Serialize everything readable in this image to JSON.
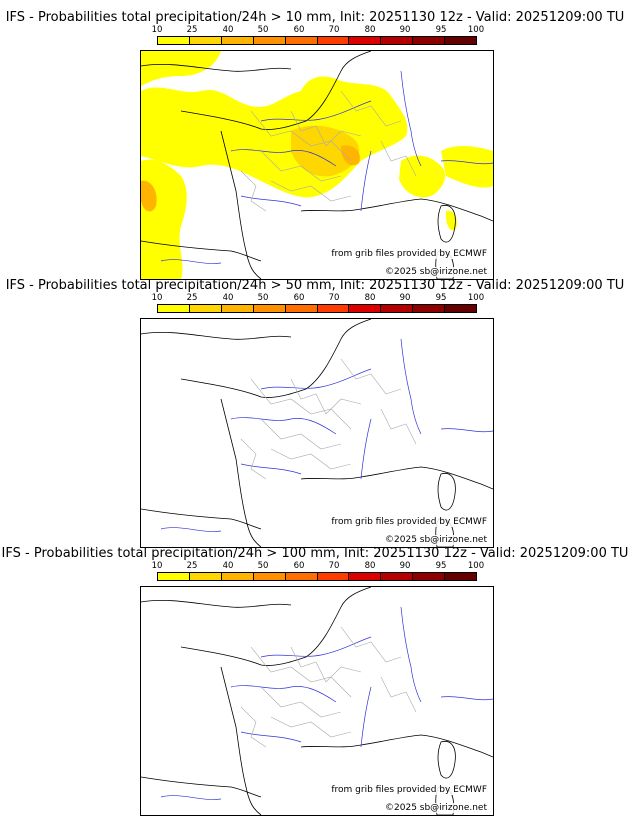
{
  "colors": {
    "scale": [
      "#ffff00",
      "#ffd700",
      "#ffb400",
      "#ff9100",
      "#ff6e00",
      "#ff3c00",
      "#dc0000",
      "#b40000",
      "#8c0000",
      "#640000"
    ],
    "coast": "#000000",
    "rivers": "#3232dc",
    "borders": "#aaaaaa"
  },
  "legend": {
    "ticks": [
      "10",
      "25",
      "40",
      "50",
      "60",
      "70",
      "80",
      "90",
      "95",
      "100"
    ]
  },
  "panels": [
    {
      "title": "IFS - Probabilities total precipitation/24h > 10 mm, Init: 20251130 12z - Valid: 20251209:00 TU",
      "source": "from grib files provided by ECMWF",
      "copyright": "©2025 sb@irizone.net",
      "has_precip": true
    },
    {
      "title": "IFS - Probabilities total precipitation/24h > 50 mm, Init: 20251130 12z - Valid: 20251209:00 TU",
      "source": "from grib files provided by ECMWF",
      "copyright": "©2025 sb@irizone.net",
      "has_precip": false
    },
    {
      "title": "IFS - Probabilities total precipitation/24h > 100 mm, Init: 20251130 12z - Valid: 20251209:00 TU",
      "source": "from grib files provided by ECMWF",
      "copyright": "©2025 sb@irizone.net",
      "has_precip": false
    }
  ]
}
